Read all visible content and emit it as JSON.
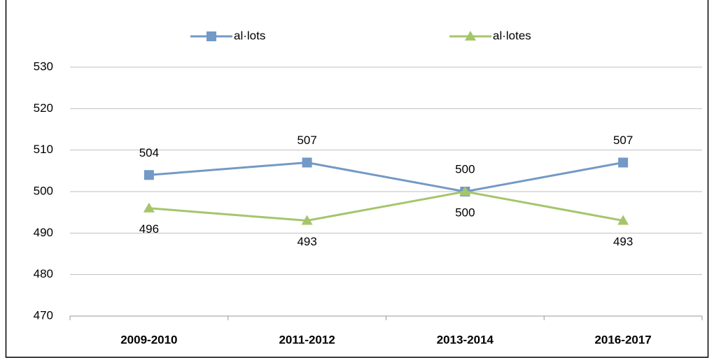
{
  "chart_data": {
    "type": "line",
    "categories": [
      "2009-2010",
      "2011-2012",
      "2013-2014",
      "2016-2017"
    ],
    "series": [
      {
        "name": "al·lots",
        "color": "#7399c6",
        "marker": "square",
        "label_position": "above",
        "values": [
          504,
          507,
          500,
          507
        ]
      },
      {
        "name": "al·lotes",
        "color": "#a5c56b",
        "marker": "triangle",
        "label_position": "below",
        "values": [
          496,
          493,
          500,
          493
        ]
      }
    ],
    "ylim": [
      470,
      530
    ],
    "yticks": [
      470,
      480,
      490,
      500,
      510,
      520,
      530
    ],
    "grid": true,
    "legend": "top"
  }
}
